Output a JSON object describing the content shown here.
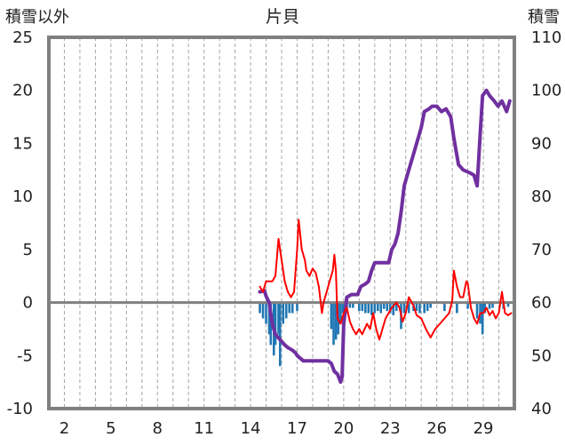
{
  "chart_data": {
    "type": "line",
    "title": "片貝",
    "left_axis_title": "積雪以外",
    "right_axis_title": "積雪",
    "x_categories": [
      "2",
      "5",
      "8",
      "11",
      "14",
      "17",
      "20",
      "23",
      "26",
      "29"
    ],
    "x_category_values": [
      2,
      5,
      8,
      11,
      14,
      17,
      20,
      23,
      26,
      29
    ],
    "x_range": [
      1,
      31
    ],
    "y_left_range": [
      -10,
      25
    ],
    "y_left_ticks": [
      "-10",
      "-5",
      "0",
      "5",
      "10",
      "15",
      "20",
      "25"
    ],
    "y_right_range": [
      40,
      110
    ],
    "y_right_ticks": [
      "40",
      "50",
      "60",
      "70",
      "80",
      "90",
      "100",
      "110"
    ],
    "grid": {
      "vertical_dashed": true,
      "horizontal": false
    },
    "zero_line": true,
    "colors": {
      "snow_depth": "#7030a0",
      "temperature": "#ff0000",
      "precipitation": "#1f77b4",
      "frame": "#808080",
      "zero_line": "#808080"
    },
    "series": [
      {
        "key": "snow_depth",
        "axis": "right",
        "kind": "line",
        "points": [
          [
            14.6,
            62
          ],
          [
            14.9,
            62.2
          ],
          [
            15.0,
            61.2
          ],
          [
            15.2,
            60
          ],
          [
            15.4,
            56
          ],
          [
            15.6,
            54
          ],
          [
            15.9,
            53
          ],
          [
            16.2,
            52
          ],
          [
            16.4,
            51.5
          ],
          [
            16.7,
            51
          ],
          [
            16.9,
            50.5
          ],
          [
            17.0,
            50
          ],
          [
            17.2,
            49.5
          ],
          [
            17.4,
            49
          ],
          [
            17.7,
            49
          ],
          [
            18.0,
            49
          ],
          [
            18.3,
            49
          ],
          [
            18.7,
            49
          ],
          [
            19.0,
            49
          ],
          [
            19.2,
            48.5
          ],
          [
            19.4,
            47
          ],
          [
            19.6,
            46.5
          ],
          [
            19.8,
            45
          ],
          [
            19.9,
            46
          ],
          [
            20.0,
            56
          ],
          [
            20.2,
            61
          ],
          [
            20.5,
            61.5
          ],
          [
            20.9,
            61.5
          ],
          [
            21.1,
            63
          ],
          [
            21.4,
            63.5
          ],
          [
            21.6,
            64
          ],
          [
            21.8,
            66
          ],
          [
            22.0,
            67.5
          ],
          [
            22.3,
            67.5
          ],
          [
            22.6,
            67.5
          ],
          [
            22.9,
            67.5
          ],
          [
            23.1,
            70
          ],
          [
            23.3,
            71
          ],
          [
            23.5,
            73
          ],
          [
            23.7,
            77
          ],
          [
            23.9,
            82
          ],
          [
            24.2,
            85
          ],
          [
            24.5,
            88
          ],
          [
            24.8,
            91
          ],
          [
            25.0,
            93
          ],
          [
            25.2,
            96
          ],
          [
            25.5,
            96.5
          ],
          [
            25.7,
            97
          ],
          [
            26.0,
            97
          ],
          [
            26.3,
            96
          ],
          [
            26.6,
            96.5
          ],
          [
            26.9,
            95
          ],
          [
            27.1,
            91
          ],
          [
            27.4,
            86
          ],
          [
            27.7,
            85
          ],
          [
            28.1,
            84.5
          ],
          [
            28.4,
            84
          ],
          [
            28.6,
            82
          ],
          [
            28.8,
            92
          ],
          [
            28.95,
            99
          ],
          [
            29.2,
            100
          ],
          [
            29.4,
            99
          ],
          [
            29.7,
            98
          ],
          [
            29.95,
            97
          ],
          [
            30.2,
            98
          ],
          [
            30.5,
            96
          ],
          [
            30.7,
            98
          ]
        ]
      },
      {
        "key": "temperature",
        "axis": "left",
        "kind": "line",
        "points": [
          [
            14.6,
            1.5
          ],
          [
            14.8,
            1
          ],
          [
            15.0,
            2
          ],
          [
            15.2,
            2
          ],
          [
            15.4,
            2
          ],
          [
            15.6,
            2.5
          ],
          [
            15.8,
            6
          ],
          [
            16.0,
            4
          ],
          [
            16.2,
            2
          ],
          [
            16.4,
            1
          ],
          [
            16.6,
            0.5
          ],
          [
            16.8,
            1
          ],
          [
            17.0,
            5
          ],
          [
            17.1,
            7.8
          ],
          [
            17.3,
            5
          ],
          [
            17.5,
            4
          ],
          [
            17.6,
            3
          ],
          [
            17.8,
            2.5
          ],
          [
            18.0,
            3.2
          ],
          [
            18.2,
            2.8
          ],
          [
            18.4,
            1.5
          ],
          [
            18.6,
            -1
          ],
          [
            18.7,
            0
          ],
          [
            18.9,
            1
          ],
          [
            19.1,
            2
          ],
          [
            19.3,
            3
          ],
          [
            19.4,
            4.5
          ],
          [
            19.5,
            3
          ],
          [
            19.6,
            -1.5
          ],
          [
            19.8,
            -2
          ],
          [
            20.0,
            -1
          ],
          [
            20.2,
            -0.5
          ],
          [
            20.4,
            -1.8
          ],
          [
            20.6,
            -2.5
          ],
          [
            20.8,
            -3
          ],
          [
            21.0,
            -2.5
          ],
          [
            21.2,
            -3
          ],
          [
            21.5,
            -2
          ],
          [
            21.7,
            -2.5
          ],
          [
            21.9,
            -1
          ],
          [
            22.1,
            -2.5
          ],
          [
            22.3,
            -3.5
          ],
          [
            22.5,
            -2.5
          ],
          [
            22.7,
            -1.5
          ],
          [
            22.9,
            -1
          ],
          [
            23.1,
            -0.5
          ],
          [
            23.4,
            0
          ],
          [
            23.6,
            -0.5
          ],
          [
            23.8,
            -1.8
          ],
          [
            24.0,
            -1
          ],
          [
            24.2,
            0.5
          ],
          [
            24.5,
            -0.3
          ],
          [
            24.7,
            -1.2
          ],
          [
            25.0,
            -1.5
          ],
          [
            25.3,
            -2.5
          ],
          [
            25.6,
            -3.3
          ],
          [
            25.9,
            -2.5
          ],
          [
            26.2,
            -2
          ],
          [
            26.5,
            -1.5
          ],
          [
            26.8,
            -1
          ],
          [
            27.0,
            0.2
          ],
          [
            27.1,
            3
          ],
          [
            27.3,
            1.5
          ],
          [
            27.5,
            0.5
          ],
          [
            27.7,
            0.5
          ],
          [
            27.9,
            2
          ],
          [
            28.0,
            1.8
          ],
          [
            28.2,
            -0.5
          ],
          [
            28.4,
            -1.5
          ],
          [
            28.6,
            -2
          ],
          [
            28.8,
            -1
          ],
          [
            29.0,
            -1
          ],
          [
            29.2,
            -0.5
          ],
          [
            29.4,
            -1.2
          ],
          [
            29.6,
            -0.8
          ],
          [
            29.8,
            -1.5
          ],
          [
            30.0,
            -1
          ],
          [
            30.2,
            1
          ],
          [
            30.4,
            -1
          ],
          [
            30.6,
            -1.2
          ],
          [
            30.8,
            -1
          ]
        ]
      },
      {
        "key": "precipitation",
        "axis": "left",
        "kind": "bar",
        "points": [
          [
            14.6,
            -1
          ],
          [
            14.8,
            -1.5
          ],
          [
            15.0,
            -2
          ],
          [
            15.2,
            -3
          ],
          [
            15.3,
            -4
          ],
          [
            15.5,
            -5
          ],
          [
            15.6,
            -4
          ],
          [
            15.8,
            -3
          ],
          [
            15.9,
            -6
          ],
          [
            16.1,
            -2
          ],
          [
            16.3,
            -1.5
          ],
          [
            16.5,
            -1
          ],
          [
            16.7,
            -1
          ],
          [
            17.0,
            -0.8
          ],
          [
            19.2,
            -2.5
          ],
          [
            19.35,
            -4
          ],
          [
            19.5,
            -3.5
          ],
          [
            19.65,
            -3
          ],
          [
            19.8,
            -2
          ],
          [
            19.95,
            -1
          ],
          [
            20.2,
            -1
          ],
          [
            20.4,
            -0.5
          ],
          [
            20.6,
            -0.5
          ],
          [
            21.0,
            -0.8
          ],
          [
            21.2,
            -0.8
          ],
          [
            21.4,
            -1
          ],
          [
            21.6,
            -1
          ],
          [
            21.8,
            -1.2
          ],
          [
            22.0,
            -1
          ],
          [
            22.2,
            -0.8
          ],
          [
            22.4,
            -1
          ],
          [
            22.6,
            -0.6
          ],
          [
            22.8,
            -0.8
          ],
          [
            23.0,
            -1
          ],
          [
            23.2,
            -1.2
          ],
          [
            23.4,
            -0.8
          ],
          [
            23.7,
            -2.5
          ],
          [
            23.9,
            -1
          ],
          [
            24.2,
            -1
          ],
          [
            24.5,
            -0.8
          ],
          [
            24.7,
            -0.8
          ],
          [
            24.9,
            -1
          ],
          [
            25.2,
            -1
          ],
          [
            25.4,
            -0.8
          ],
          [
            25.6,
            -0.5
          ],
          [
            26.5,
            -0.8
          ],
          [
            27.3,
            -1
          ],
          [
            28.0,
            -0.6
          ],
          [
            28.6,
            -1.5
          ],
          [
            28.8,
            -2
          ],
          [
            28.95,
            -3
          ],
          [
            29.1,
            -1
          ],
          [
            29.4,
            -0.6
          ],
          [
            29.6,
            -0.5
          ],
          [
            30.3,
            -0.6
          ],
          [
            30.6,
            -0.4
          ]
        ]
      }
    ]
  }
}
